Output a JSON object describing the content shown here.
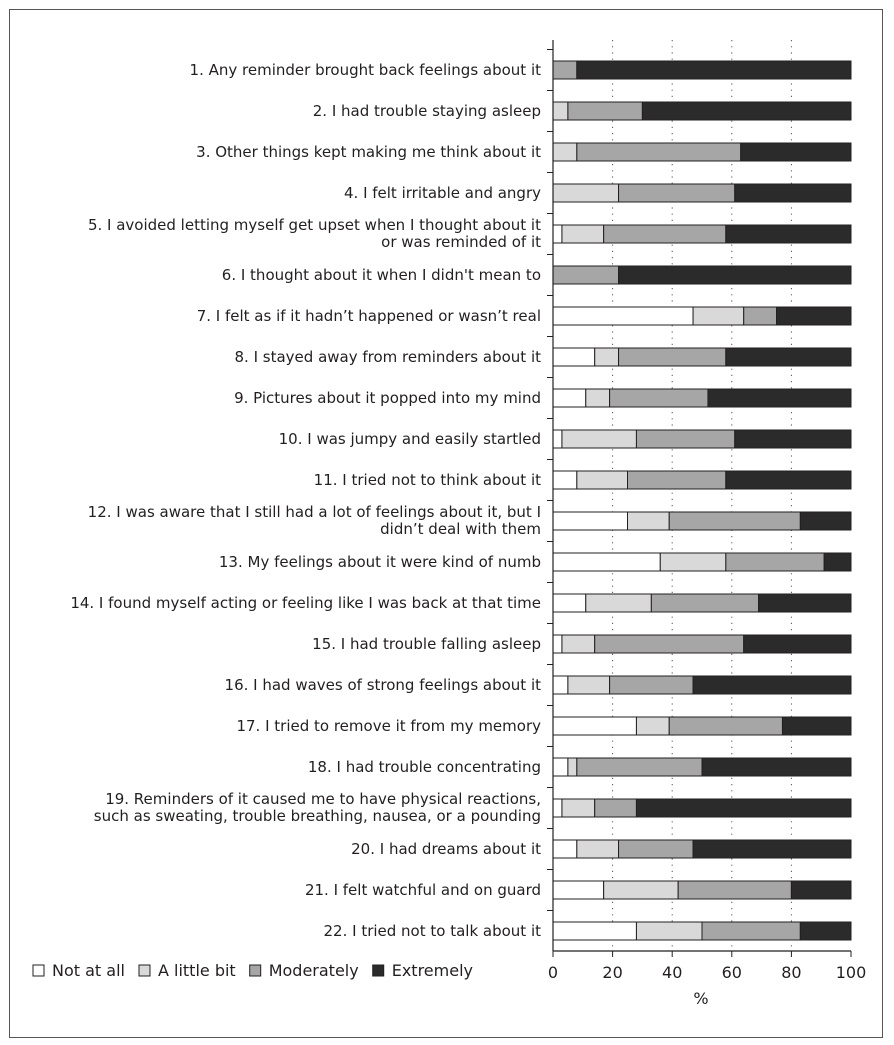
{
  "chart_data": {
    "type": "bar",
    "stacked": true,
    "orientation": "horizontal",
    "xlabel": "%",
    "xlim": [
      0,
      100
    ],
    "xticks": [
      0,
      20,
      40,
      60,
      80,
      100
    ],
    "grid": "dotted vertical at 20, 40, 60, 80",
    "legend_placement": "bottom-left",
    "categories": [
      [
        "1. Any reminder brought back feelings about it"
      ],
      [
        "2. I had trouble staying asleep"
      ],
      [
        "3. Other things kept making me think about it"
      ],
      [
        "4. I felt irritable and angry"
      ],
      [
        "5. I avoided letting myself get upset when I thought about it",
        "or was reminded of it"
      ],
      [
        "6. I thought about it when I didn't mean to"
      ],
      [
        "7. I felt as if it hadn’t happened or wasn’t real"
      ],
      [
        "8. I stayed away from reminders about it"
      ],
      [
        "9. Pictures about it popped into my mind"
      ],
      [
        "10. I was jumpy and easily startled"
      ],
      [
        "11. I tried not to think about it"
      ],
      [
        "12. I was aware that I still had a lot of feelings about it, but I",
        "didn’t deal with them"
      ],
      [
        "13. My feelings about it were kind of numb"
      ],
      [
        "14. I found myself acting or feeling like I was back at that time"
      ],
      [
        "15. I had trouble falling asleep"
      ],
      [
        "16. I had waves of strong feelings about it"
      ],
      [
        "17. I tried to remove it from my memory"
      ],
      [
        "18. I had trouble concentrating"
      ],
      [
        "19. Reminders of it caused me to have physical reactions,",
        "such as sweating, trouble  breathing, nausea, or a pounding"
      ],
      [
        "20. I had dreams about it"
      ],
      [
        "21. I felt watchful and on guard"
      ],
      [
        "22. I tried not to talk about it"
      ]
    ],
    "series": [
      {
        "name": "Not at all",
        "color": "#ffffff",
        "values": [
          0,
          0,
          0,
          0,
          3,
          0,
          47,
          14,
          11,
          3,
          8,
          25,
          36,
          11,
          3,
          5,
          28,
          5,
          3,
          8,
          17,
          28
        ]
      },
      {
        "name": "A little bit",
        "color": "#d9d9d9",
        "values": [
          0,
          5,
          8,
          22,
          14,
          0,
          17,
          8,
          8,
          25,
          17,
          14,
          22,
          22,
          11,
          14,
          11,
          3,
          11,
          14,
          25,
          22
        ]
      },
      {
        "name": "Moderately",
        "color": "#a6a6a6",
        "values": [
          8,
          25,
          55,
          39,
          41,
          22,
          11,
          36,
          33,
          33,
          33,
          44,
          33,
          36,
          50,
          28,
          38,
          42,
          14,
          25,
          38,
          33
        ]
      },
      {
        "name": "Extremely",
        "color": "#2b2b2b",
        "values": [
          92,
          70,
          37,
          39,
          42,
          78,
          25,
          42,
          48,
          39,
          42,
          17,
          9,
          31,
          36,
          53,
          23,
          50,
          72,
          53,
          20,
          17
        ]
      }
    ]
  }
}
